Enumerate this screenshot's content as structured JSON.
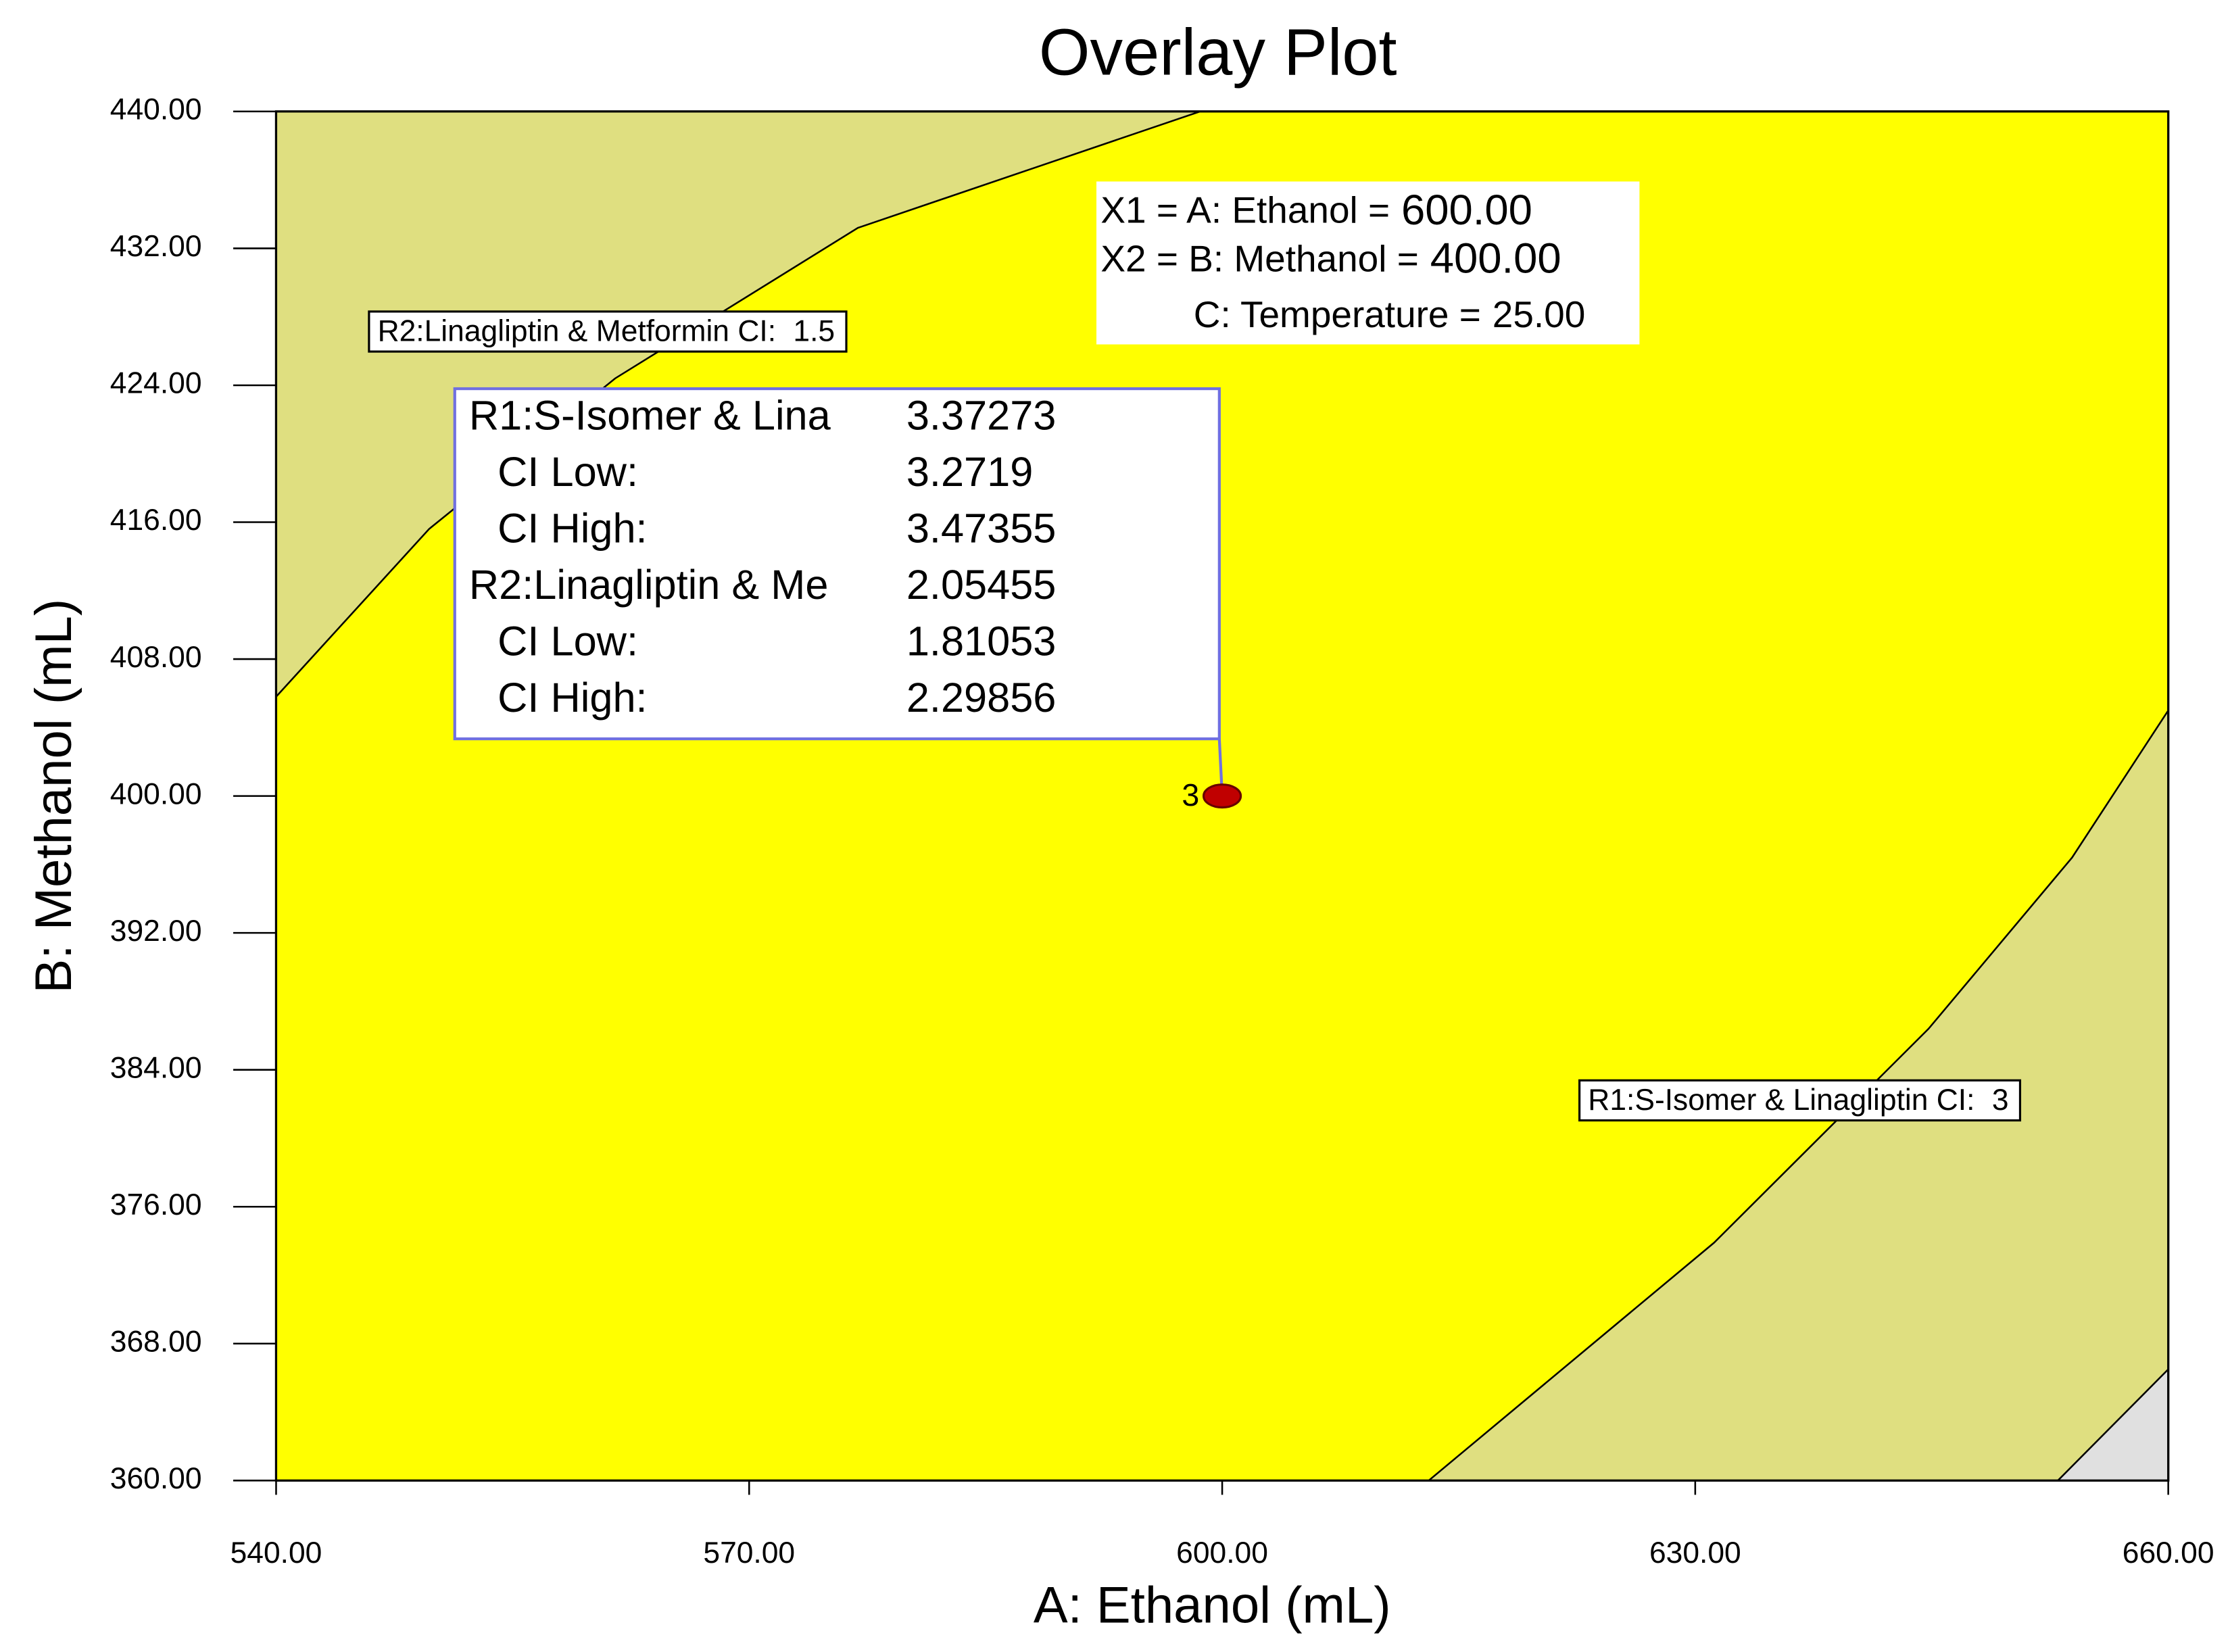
{
  "chart_data": {
    "type": "contour",
    "title": "Overlay Plot",
    "x_label": "A: Ethanol (mL)",
    "y_label": "B: Methanol (mL)",
    "xlim": [
      540,
      660
    ],
    "ylim": [
      360,
      440
    ],
    "xticks": [
      {
        "value": 540,
        "label": "540.00"
      },
      {
        "value": 570,
        "label": "570.00"
      },
      {
        "value": 600,
        "label": "600.00"
      },
      {
        "value": 630,
        "label": "630.00"
      },
      {
        "value": 660,
        "label": "660.00"
      }
    ],
    "yticks": [
      {
        "value": 360,
        "label": "360.00"
      },
      {
        "value": 368,
        "label": "368.00"
      },
      {
        "value": 376,
        "label": "376.00"
      },
      {
        "value": 384,
        "label": "384.00"
      },
      {
        "value": 392,
        "label": "392.00"
      },
      {
        "value": 400,
        "label": "400.00"
      },
      {
        "value": 408,
        "label": "408.00"
      },
      {
        "value": 416,
        "label": "416.00"
      },
      {
        "value": 424,
        "label": "424.00"
      },
      {
        "value": 432,
        "label": "432.00"
      },
      {
        "value": 440,
        "label": "440.00"
      }
    ],
    "region_color": "#ffff00",
    "contours": [
      {
        "label": "R2:Linagliptin & Metformin CI:",
        "level": 1.5,
        "corner": "top-left",
        "color": "#dfdf80",
        "x": [
          540,
          549.7,
          561.5,
          576.9,
          598.6
        ],
        "y": [
          405.8,
          415.6,
          424.4,
          433.2,
          440
        ]
      },
      {
        "label": "R1:S-Isomer & Linagliptin CI:",
        "level": 3,
        "corner": "bottom-right",
        "color": "#dfdf80",
        "x": [
          613.1,
          631.2,
          644.8,
          653.9,
          660
        ],
        "y": [
          360,
          373.9,
          386.4,
          396.4,
          405
        ]
      },
      {
        "corner": "bottom-right",
        "color": "#e0e0e0",
        "x": [
          653,
          660
        ],
        "y": [
          360,
          366.5
        ]
      }
    ],
    "point": {
      "x": 600,
      "y": 400,
      "label": "3",
      "color": "#c00000"
    },
    "responses": [
      {
        "name": "R1:S-Isomer & Lina",
        "prediction": 3.37273,
        "ci": [
          {
            "label": "CI Low:",
            "value": 3.2719
          },
          {
            "label": "CI High:",
            "value": 3.47355
          }
        ]
      },
      {
        "name": "R2:Linagliptin & Me",
        "prediction": 2.05455,
        "ci": [
          {
            "label": "CI Low:",
            "value": 1.81053
          },
          {
            "label": "CI High:",
            "value": 2.29856
          }
        ]
      }
    ],
    "factors": [
      {
        "name": "X1 = A: Ethanol =",
        "value": {
          "value": 600,
          "label": "600.00"
        }
      },
      {
        "name": "X2 = B: Methanol =",
        "value": {
          "value": 400,
          "label": "400.00"
        }
      },
      {
        "name": "C: Temperature =",
        "value": {
          "value": 25,
          "label": "25.00"
        }
      }
    ]
  }
}
